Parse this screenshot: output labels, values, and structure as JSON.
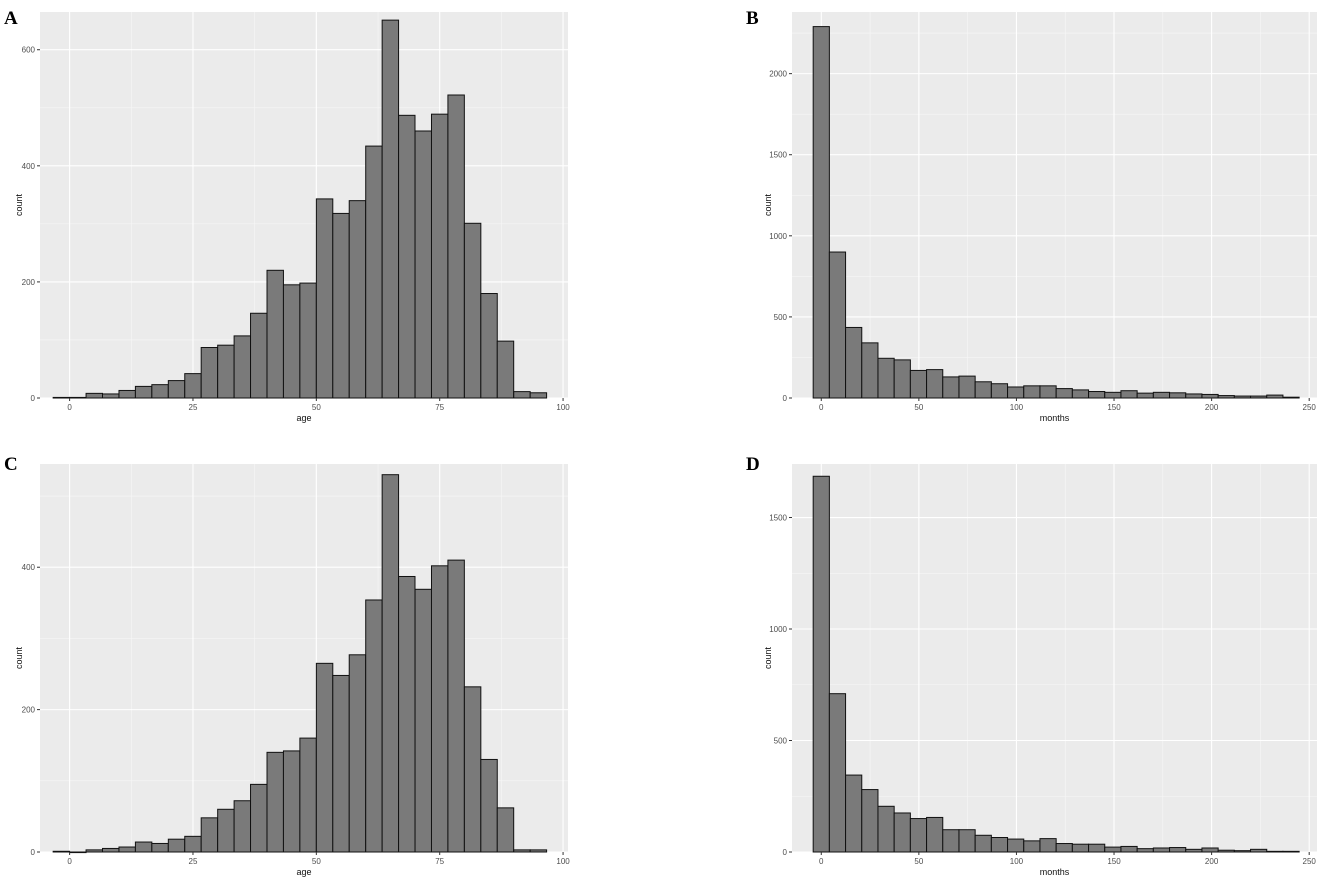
{
  "chart_data": [
    {
      "panel": "A",
      "type": "bar",
      "xlabel": "age",
      "ylabel": "count",
      "xlim": [
        -6,
        101
      ],
      "ylim": [
        0,
        665
      ],
      "xticks": [
        0,
        25,
        50,
        75,
        100
      ],
      "yticks": [
        0,
        200,
        400,
        600
      ],
      "binwidth": 3.33,
      "x": [
        -1.67,
        1.67,
        5.0,
        8.33,
        11.67,
        15.0,
        18.33,
        21.67,
        25.0,
        28.33,
        31.67,
        35.0,
        38.33,
        41.67,
        45.0,
        48.33,
        51.67,
        55.0,
        58.33,
        61.67,
        65.0,
        68.33,
        71.67,
        75.0,
        78.33,
        81.67,
        85.0,
        88.33,
        91.67,
        95.0
      ],
      "values": [
        1,
        1,
        8,
        7,
        13,
        20,
        23,
        30,
        42,
        87,
        91,
        107,
        146,
        220,
        195,
        198,
        343,
        318,
        340,
        434,
        651,
        487,
        460,
        489,
        522,
        301,
        180,
        98,
        11,
        9
      ]
    },
    {
      "panel": "B",
      "type": "bar",
      "xlabel": "months",
      "ylabel": "count",
      "xlim": [
        -15,
        254
      ],
      "ylim": [
        0,
        2380
      ],
      "xticks": [
        0,
        50,
        100,
        150,
        200,
        250
      ],
      "yticks": [
        0,
        500,
        1000,
        1500,
        2000
      ],
      "binwidth": 8.3,
      "x": [
        0.0,
        8.3,
        16.6,
        24.9,
        33.2,
        41.5,
        49.8,
        58.1,
        66.4,
        74.7,
        83.0,
        91.3,
        99.6,
        107.9,
        116.2,
        124.5,
        132.8,
        141.1,
        149.4,
        157.7,
        166.0,
        174.3,
        182.6,
        190.9,
        199.2,
        207.5,
        215.8,
        224.1,
        232.4,
        240.7
      ],
      "values": [
        2290,
        900,
        435,
        340,
        245,
        235,
        170,
        175,
        130,
        135,
        100,
        88,
        68,
        75,
        75,
        58,
        50,
        40,
        35,
        45,
        30,
        35,
        32,
        25,
        22,
        15,
        12,
        12,
        18,
        5
      ]
    },
    {
      "panel": "C",
      "type": "bar",
      "xlabel": "age",
      "ylabel": "count",
      "xlim": [
        -6,
        101
      ],
      "ylim": [
        0,
        545
      ],
      "xticks": [
        0,
        25,
        50,
        75,
        100
      ],
      "yticks": [
        0,
        200,
        400
      ],
      "binwidth": 3.33,
      "x": [
        -1.67,
        1.67,
        5.0,
        8.33,
        11.67,
        15.0,
        18.33,
        21.67,
        25.0,
        28.33,
        31.67,
        35.0,
        38.33,
        41.67,
        45.0,
        48.33,
        51.67,
        55.0,
        58.33,
        61.67,
        65.0,
        68.33,
        71.67,
        75.0,
        78.33,
        81.67,
        85.0,
        88.33,
        91.67,
        95.0
      ],
      "values": [
        1,
        0,
        3,
        5,
        7,
        14,
        12,
        18,
        22,
        48,
        60,
        72,
        95,
        140,
        142,
        160,
        265,
        248,
        277,
        354,
        530,
        387,
        369,
        402,
        410,
        232,
        130,
        62,
        3,
        3
      ]
    },
    {
      "panel": "D",
      "type": "bar",
      "xlabel": "months",
      "ylabel": "count",
      "xlim": [
        -15,
        254
      ],
      "ylim": [
        0,
        1740
      ],
      "xticks": [
        0,
        50,
        100,
        150,
        200,
        250
      ],
      "yticks": [
        0,
        500,
        1000,
        1500
      ],
      "binwidth": 8.3,
      "x": [
        0.0,
        8.3,
        16.6,
        24.9,
        33.2,
        41.5,
        49.8,
        58.1,
        66.4,
        74.7,
        83.0,
        91.3,
        99.6,
        107.9,
        116.2,
        124.5,
        132.8,
        141.1,
        149.4,
        157.7,
        166.0,
        174.3,
        182.6,
        190.9,
        199.2,
        207.5,
        215.8,
        224.1,
        232.4,
        240.7
      ],
      "values": [
        1685,
        710,
        345,
        280,
        205,
        175,
        150,
        155,
        100,
        100,
        75,
        65,
        58,
        50,
        60,
        38,
        35,
        35,
        22,
        25,
        15,
        18,
        20,
        12,
        18,
        8,
        6,
        12,
        3,
        3
      ]
    }
  ]
}
